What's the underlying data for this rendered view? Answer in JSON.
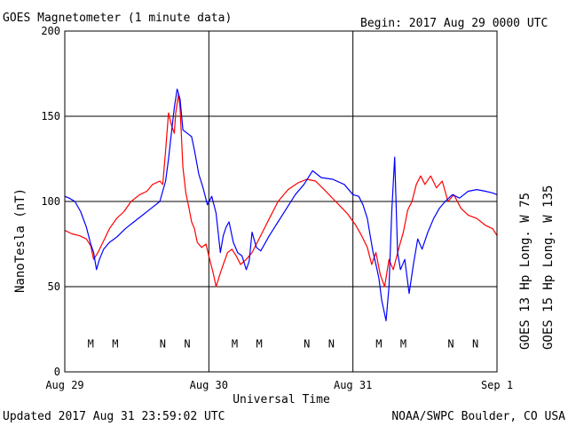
{
  "header": {
    "title": "GOES Magnetometer (1 minute data)",
    "begin_label": "Begin:  2017 Aug 29 0000 UTC"
  },
  "footer": {
    "updated": "Updated 2017 Aug 31 23:59:02 UTC",
    "source": "NOAA/SWPC Boulder, CO USA"
  },
  "chart_data": {
    "type": "line",
    "title": "GOES Magnetometer (1 minute data)",
    "xlabel": "Universal Time",
    "ylabel": "NanoTesla (nT)",
    "ylim": [
      0,
      200
    ],
    "xlim_days": [
      0,
      3
    ],
    "yticks": [
      "0",
      "50",
      "100",
      "150",
      "200"
    ],
    "xticks": [
      {
        "label": "Aug 29",
        "day": 0
      },
      {
        "label": "Aug 30",
        "day": 1
      },
      {
        "label": "Aug 31",
        "day": 2
      },
      {
        "label": "Sep 1",
        "day": 3
      }
    ],
    "grid": true,
    "legend_placement": "right (vertical)",
    "series": [
      {
        "name": "GOES 13 Hp  Long. W 75",
        "color": "#ff0000",
        "points": [
          [
            0.0,
            83
          ],
          [
            0.05,
            81
          ],
          [
            0.1,
            80
          ],
          [
            0.15,
            78
          ],
          [
            0.18,
            74
          ],
          [
            0.2,
            66
          ],
          [
            0.23,
            70
          ],
          [
            0.27,
            77
          ],
          [
            0.31,
            84
          ],
          [
            0.36,
            90
          ],
          [
            0.41,
            94
          ],
          [
            0.46,
            100
          ],
          [
            0.52,
            104
          ],
          [
            0.57,
            106
          ],
          [
            0.61,
            110
          ],
          [
            0.66,
            112
          ],
          [
            0.68,
            110
          ],
          [
            0.7,
            130
          ],
          [
            0.72,
            152
          ],
          [
            0.74,
            145
          ],
          [
            0.76,
            140
          ],
          [
            0.77,
            152
          ],
          [
            0.79,
            163
          ],
          [
            0.8,
            155
          ],
          [
            0.82,
            120
          ],
          [
            0.84,
            105
          ],
          [
            0.86,
            97
          ],
          [
            0.88,
            88
          ],
          [
            0.9,
            84
          ],
          [
            0.92,
            76
          ],
          [
            0.95,
            73
          ],
          [
            0.98,
            75
          ],
          [
            1.0,
            68
          ],
          [
            1.03,
            58
          ],
          [
            1.05,
            50
          ],
          [
            1.08,
            58
          ],
          [
            1.1,
            63
          ],
          [
            1.13,
            70
          ],
          [
            1.16,
            72
          ],
          [
            1.19,
            68
          ],
          [
            1.22,
            63
          ],
          [
            1.26,
            66
          ],
          [
            1.3,
            70
          ],
          [
            1.36,
            80
          ],
          [
            1.42,
            90
          ],
          [
            1.48,
            100
          ],
          [
            1.55,
            107
          ],
          [
            1.62,
            111
          ],
          [
            1.68,
            113
          ],
          [
            1.74,
            112
          ],
          [
            1.8,
            107
          ],
          [
            1.88,
            100
          ],
          [
            1.96,
            93
          ],
          [
            2.02,
            86
          ],
          [
            2.06,
            80
          ],
          [
            2.1,
            73
          ],
          [
            2.13,
            63
          ],
          [
            2.16,
            70
          ],
          [
            2.19,
            57
          ],
          [
            2.22,
            50
          ],
          [
            2.25,
            66
          ],
          [
            2.28,
            60
          ],
          [
            2.32,
            73
          ],
          [
            2.35,
            82
          ],
          [
            2.38,
            95
          ],
          [
            2.41,
            100
          ],
          [
            2.44,
            110
          ],
          [
            2.47,
            115
          ],
          [
            2.5,
            110
          ],
          [
            2.54,
            115
          ],
          [
            2.58,
            108
          ],
          [
            2.62,
            112
          ],
          [
            2.66,
            100
          ],
          [
            2.7,
            104
          ],
          [
            2.75,
            96
          ],
          [
            2.8,
            92
          ],
          [
            2.86,
            90
          ],
          [
            2.92,
            86
          ],
          [
            2.97,
            84
          ],
          [
            3.0,
            80
          ]
        ]
      },
      {
        "name": "GOES 15 Hp  Long. W 135",
        "color": "#0000ff",
        "points": [
          [
            0.0,
            103
          ],
          [
            0.03,
            102
          ],
          [
            0.07,
            100
          ],
          [
            0.11,
            94
          ],
          [
            0.15,
            85
          ],
          [
            0.18,
            75
          ],
          [
            0.2,
            70
          ],
          [
            0.22,
            60
          ],
          [
            0.24,
            66
          ],
          [
            0.27,
            72
          ],
          [
            0.31,
            76
          ],
          [
            0.36,
            79
          ],
          [
            0.42,
            84
          ],
          [
            0.48,
            88
          ],
          [
            0.54,
            92
          ],
          [
            0.6,
            96
          ],
          [
            0.66,
            100
          ],
          [
            0.7,
            112
          ],
          [
            0.72,
            125
          ],
          [
            0.74,
            140
          ],
          [
            0.76,
            155
          ],
          [
            0.78,
            166
          ],
          [
            0.8,
            160
          ],
          [
            0.82,
            142
          ],
          [
            0.85,
            140
          ],
          [
            0.88,
            138
          ],
          [
            0.9,
            130
          ],
          [
            0.93,
            116
          ],
          [
            0.96,
            108
          ],
          [
            0.99,
            98
          ],
          [
            1.02,
            103
          ],
          [
            1.05,
            93
          ],
          [
            1.08,
            70
          ],
          [
            1.1,
            80
          ],
          [
            1.12,
            85
          ],
          [
            1.14,
            88
          ],
          [
            1.17,
            76
          ],
          [
            1.2,
            70
          ],
          [
            1.23,
            68
          ],
          [
            1.26,
            60
          ],
          [
            1.28,
            65
          ],
          [
            1.3,
            82
          ],
          [
            1.33,
            73
          ],
          [
            1.36,
            71
          ],
          [
            1.42,
            80
          ],
          [
            1.48,
            88
          ],
          [
            1.54,
            96
          ],
          [
            1.6,
            104
          ],
          [
            1.66,
            110
          ],
          [
            1.72,
            118
          ],
          [
            1.78,
            114
          ],
          [
            1.86,
            113
          ],
          [
            1.94,
            110
          ],
          [
            2.0,
            104
          ],
          [
            2.04,
            103
          ],
          [
            2.07,
            98
          ],
          [
            2.1,
            90
          ],
          [
            2.12,
            80
          ],
          [
            2.14,
            70
          ],
          [
            2.16,
            63
          ],
          [
            2.18,
            55
          ],
          [
            2.2,
            42
          ],
          [
            2.23,
            30
          ],
          [
            2.25,
            50
          ],
          [
            2.27,
            95
          ],
          [
            2.29,
            126
          ],
          [
            2.31,
            70
          ],
          [
            2.33,
            60
          ],
          [
            2.36,
            66
          ],
          [
            2.39,
            46
          ],
          [
            2.42,
            63
          ],
          [
            2.45,
            78
          ],
          [
            2.48,
            72
          ],
          [
            2.52,
            82
          ],
          [
            2.56,
            90
          ],
          [
            2.6,
            96
          ],
          [
            2.64,
            100
          ],
          [
            2.69,
            104
          ],
          [
            2.74,
            102
          ],
          [
            2.8,
            106
          ],
          [
            2.86,
            107
          ],
          [
            2.92,
            106
          ],
          [
            2.97,
            105
          ],
          [
            3.0,
            104
          ]
        ]
      }
    ],
    "markers": [
      {
        "label": "M",
        "day": 0.18,
        "color": "#ff0000"
      },
      {
        "label": "M",
        "day": 0.35,
        "color": "#0000ff"
      },
      {
        "label": "N",
        "day": 0.68,
        "color": "#ff0000"
      },
      {
        "label": "N",
        "day": 0.85,
        "color": "#0000ff"
      },
      {
        "label": "M",
        "day": 1.18,
        "color": "#ff0000"
      },
      {
        "label": "M",
        "day": 1.35,
        "color": "#0000ff"
      },
      {
        "label": "N",
        "day": 1.68,
        "color": "#ff0000"
      },
      {
        "label": "N",
        "day": 1.85,
        "color": "#0000ff"
      },
      {
        "label": "M",
        "day": 2.18,
        "color": "#ff0000"
      },
      {
        "label": "M",
        "day": 2.35,
        "color": "#0000ff"
      },
      {
        "label": "N",
        "day": 2.68,
        "color": "#ff0000"
      },
      {
        "label": "N",
        "day": 2.85,
        "color": "#0000ff"
      }
    ],
    "marker_level": 17
  }
}
